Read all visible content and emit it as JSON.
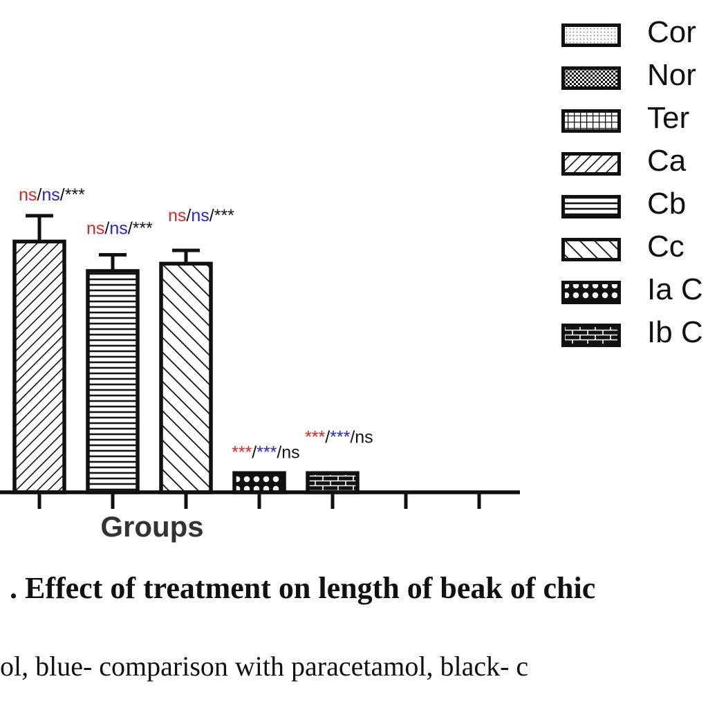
{
  "chart_data": {
    "type": "bar",
    "xlabel": "Groups",
    "categories": [
      "Ca",
      "Cb",
      "Cc",
      "Ia",
      "Ib"
    ],
    "values": [
      34,
      30,
      31,
      2.6,
      2.6
    ],
    "errors": [
      3.5,
      2.2,
      1.8,
      0,
      0
    ],
    "ylim": [
      0,
      45
    ],
    "grid": false,
    "legend_position": "right",
    "annotations": [
      {
        "parts": [
          {
            "text": "ns",
            "color": "#e8221f"
          },
          {
            "text": "/",
            "color": "#111111"
          },
          {
            "text": "ns",
            "color": "#2222dd"
          },
          {
            "text": "/***",
            "color": "#111111"
          }
        ]
      },
      {
        "parts": [
          {
            "text": "ns",
            "color": "#e8221f"
          },
          {
            "text": "/",
            "color": "#111111"
          },
          {
            "text": "ns",
            "color": "#2222dd"
          },
          {
            "text": "/***",
            "color": "#111111"
          }
        ]
      },
      {
        "parts": [
          {
            "text": "ns",
            "color": "#e8221f"
          },
          {
            "text": "/",
            "color": "#111111"
          },
          {
            "text": "ns",
            "color": "#2222dd"
          },
          {
            "text": "/***",
            "color": "#111111"
          }
        ]
      },
      {
        "parts": [
          {
            "text": "***",
            "color": "#e8221f"
          },
          {
            "text": "/",
            "color": "#111111"
          },
          {
            "text": "***",
            "color": "#2222dd"
          },
          {
            "text": "/ns",
            "color": "#111111"
          }
        ]
      },
      {
        "parts": [
          {
            "text": "***",
            "color": "#e8221f"
          },
          {
            "text": "/",
            "color": "#111111"
          },
          {
            "text": "***",
            "color": "#2222dd"
          },
          {
            "text": "/ns",
            "color": "#111111"
          }
        ]
      }
    ],
    "patterns": [
      "diag-right",
      "hlines",
      "diag-left",
      "circles",
      "bricks"
    ],
    "legend": [
      {
        "label": "Cor",
        "pattern": "dots"
      },
      {
        "label": "Nor",
        "pattern": "checker"
      },
      {
        "label": "Ter",
        "pattern": "grid"
      },
      {
        "label": "Ca",
        "pattern": "diag-right"
      },
      {
        "label": "Cb",
        "pattern": "hlines"
      },
      {
        "label": "Cc",
        "pattern": "diag-left"
      },
      {
        "label": "Ia C",
        "pattern": "circles"
      },
      {
        "label": "Ib C",
        "pattern": "bricks"
      }
    ]
  },
  "caption": {
    "title": ". Effect of treatment on length of beak of chic",
    "note": "ol, blue- comparison with paracetamol, black- c"
  }
}
